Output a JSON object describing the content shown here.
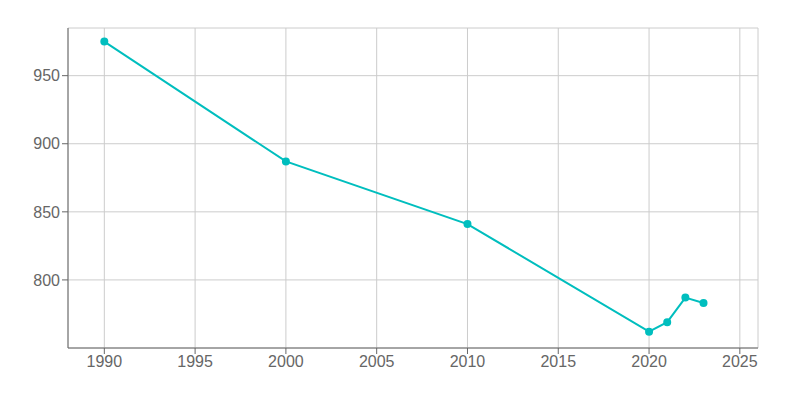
{
  "chart_data": {
    "type": "line",
    "x": [
      1990,
      2000,
      2010,
      2020,
      2021,
      2022,
      2023
    ],
    "values": [
      975,
      887,
      841,
      762,
      769,
      787,
      783
    ],
    "color": "#00BEBE",
    "marker": "circle",
    "xlim": [
      1988,
      2026
    ],
    "ylim": [
      750,
      985
    ],
    "xticks": [
      1990,
      1995,
      2000,
      2005,
      2010,
      2015,
      2020,
      2025
    ],
    "yticks": [
      800,
      850,
      900,
      950
    ],
    "grid": true
  }
}
